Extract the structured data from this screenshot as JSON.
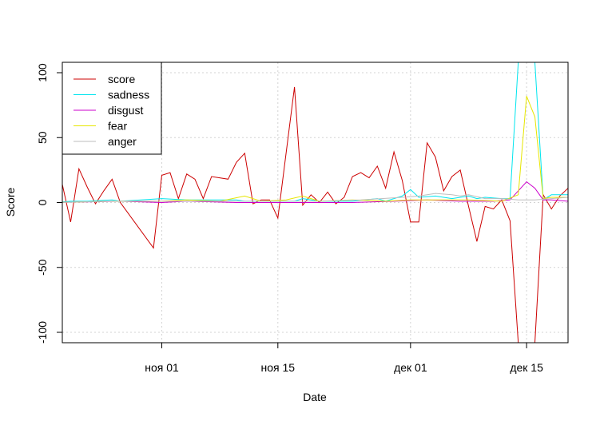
{
  "chart_data": {
    "type": "line",
    "title": "",
    "xlabel": "Date",
    "ylabel": "Score",
    "grid": true,
    "legend_position": "top-left",
    "xlim": [
      "2021-10-20",
      "2021-12-20"
    ],
    "ylim": [
      -108,
      108
    ],
    "x_ticks": [
      {
        "date": "2021-11-01",
        "label": "ноя 01"
      },
      {
        "date": "2021-11-15",
        "label": "ноя 15"
      },
      {
        "date": "2021-12-01",
        "label": "дек 01"
      },
      {
        "date": "2021-12-15",
        "label": "дек 15"
      }
    ],
    "y_ticks": [
      -100,
      -50,
      0,
      50,
      100
    ],
    "series": [
      {
        "name": "score",
        "color": "#cc0000",
        "points": [
          [
            "2021-10-19",
            7
          ],
          [
            "2021-10-20",
            14
          ],
          [
            "2021-10-21",
            -15
          ],
          [
            "2021-10-22",
            26
          ],
          [
            "2021-10-23",
            12
          ],
          [
            "2021-10-24",
            -1
          ],
          [
            "2021-10-25",
            9
          ],
          [
            "2021-10-26",
            18
          ],
          [
            "2021-10-27",
            0
          ],
          [
            "2021-10-31",
            -35
          ],
          [
            "2021-11-01",
            21
          ],
          [
            "2021-11-02",
            23
          ],
          [
            "2021-11-03",
            3
          ],
          [
            "2021-11-04",
            22
          ],
          [
            "2021-11-05",
            18
          ],
          [
            "2021-11-06",
            3
          ],
          [
            "2021-11-07",
            20
          ],
          [
            "2021-11-09",
            18
          ],
          [
            "2021-11-10",
            31
          ],
          [
            "2021-11-11",
            38
          ],
          [
            "2021-11-12",
            -1
          ],
          [
            "2021-11-13",
            2
          ],
          [
            "2021-11-14",
            2
          ],
          [
            "2021-11-15",
            -12
          ],
          [
            "2021-11-17",
            89
          ],
          [
            "2021-11-18",
            -2
          ],
          [
            "2021-11-19",
            6
          ],
          [
            "2021-11-20",
            0
          ],
          [
            "2021-11-21",
            8
          ],
          [
            "2021-11-22",
            -1
          ],
          [
            "2021-11-23",
            4
          ],
          [
            "2021-11-24",
            20
          ],
          [
            "2021-11-25",
            23
          ],
          [
            "2021-11-26",
            19
          ],
          [
            "2021-11-27",
            28
          ],
          [
            "2021-11-28",
            11
          ],
          [
            "2021-11-29",
            39
          ],
          [
            "2021-11-30",
            17
          ],
          [
            "2021-12-01",
            -15
          ],
          [
            "2021-12-02",
            -15
          ],
          [
            "2021-12-03",
            46
          ],
          [
            "2021-12-04",
            35
          ],
          [
            "2021-12-05",
            9
          ],
          [
            "2021-12-06",
            20
          ],
          [
            "2021-12-07",
            25
          ],
          [
            "2021-12-08",
            -3
          ],
          [
            "2021-12-09",
            -30
          ],
          [
            "2021-12-10",
            -3
          ],
          [
            "2021-12-11",
            -5
          ],
          [
            "2021-12-12",
            2
          ],
          [
            "2021-12-13",
            -14
          ],
          [
            "2021-12-14",
            -108
          ],
          [
            "2021-12-15",
            -108
          ],
          [
            "2021-12-16",
            -108
          ],
          [
            "2021-12-17",
            6
          ],
          [
            "2021-12-18",
            -5
          ],
          [
            "2021-12-19",
            5
          ],
          [
            "2021-12-20",
            11
          ]
        ]
      },
      {
        "name": "sadness",
        "color": "#00e5ee",
        "points": [
          [
            "2021-10-19",
            0
          ],
          [
            "2021-10-21",
            1
          ],
          [
            "2021-10-23",
            1
          ],
          [
            "2021-10-26",
            2
          ],
          [
            "2021-10-27",
            1
          ],
          [
            "2021-11-01",
            3
          ],
          [
            "2021-11-04",
            2
          ],
          [
            "2021-11-07",
            2
          ],
          [
            "2021-11-10",
            2
          ],
          [
            "2021-11-11",
            1
          ],
          [
            "2021-11-14",
            1
          ],
          [
            "2021-11-17",
            1
          ],
          [
            "2021-11-18",
            3
          ],
          [
            "2021-11-20",
            1
          ],
          [
            "2021-11-24",
            1
          ],
          [
            "2021-11-27",
            3
          ],
          [
            "2021-11-28",
            1
          ],
          [
            "2021-11-30",
            5
          ],
          [
            "2021-12-01",
            10
          ],
          [
            "2021-12-02",
            4
          ],
          [
            "2021-12-04",
            5
          ],
          [
            "2021-12-06",
            3
          ],
          [
            "2021-12-08",
            5
          ],
          [
            "2021-12-09",
            3
          ],
          [
            "2021-12-10",
            4
          ],
          [
            "2021-12-12",
            3
          ],
          [
            "2021-12-13",
            3
          ],
          [
            "2021-12-14",
            108
          ],
          [
            "2021-12-15",
            108
          ],
          [
            "2021-12-16",
            108
          ],
          [
            "2021-12-17",
            2
          ],
          [
            "2021-12-18",
            6
          ],
          [
            "2021-12-20",
            6
          ]
        ]
      },
      {
        "name": "disgust",
        "color": "#cc00cc",
        "points": [
          [
            "2021-10-19",
            0
          ],
          [
            "2021-10-27",
            1
          ],
          [
            "2021-11-01",
            0
          ],
          [
            "2021-11-04",
            1
          ],
          [
            "2021-11-10",
            0
          ],
          [
            "2021-11-17",
            0
          ],
          [
            "2021-11-24",
            0
          ],
          [
            "2021-11-29",
            1
          ],
          [
            "2021-12-03",
            2
          ],
          [
            "2021-12-07",
            1
          ],
          [
            "2021-12-11",
            1
          ],
          [
            "2021-12-13",
            2
          ],
          [
            "2021-12-15",
            16
          ],
          [
            "2021-12-16",
            11
          ],
          [
            "2021-12-17",
            2
          ],
          [
            "2021-12-18",
            2
          ],
          [
            "2021-12-20",
            1
          ]
        ]
      },
      {
        "name": "fear",
        "color": "#e6e600",
        "points": [
          [
            "2021-10-19",
            0
          ],
          [
            "2021-10-26",
            1
          ],
          [
            "2021-11-01",
            1
          ],
          [
            "2021-11-04",
            2
          ],
          [
            "2021-11-08",
            1
          ],
          [
            "2021-11-11",
            5
          ],
          [
            "2021-11-13",
            1
          ],
          [
            "2021-11-16",
            2
          ],
          [
            "2021-11-18",
            5
          ],
          [
            "2021-11-20",
            1
          ],
          [
            "2021-11-24",
            2
          ],
          [
            "2021-11-28",
            1
          ],
          [
            "2021-12-01",
            2
          ],
          [
            "2021-12-04",
            2
          ],
          [
            "2021-12-08",
            2
          ],
          [
            "2021-12-12",
            1
          ],
          [
            "2021-12-14",
            6
          ],
          [
            "2021-12-15",
            82
          ],
          [
            "2021-12-16",
            66
          ],
          [
            "2021-12-17",
            3
          ],
          [
            "2021-12-18",
            4
          ],
          [
            "2021-12-20",
            4
          ]
        ]
      },
      {
        "name": "anger",
        "color": "#bebebe",
        "points": [
          [
            "2021-10-19",
            0
          ],
          [
            "2021-10-26",
            1
          ],
          [
            "2021-11-01",
            1
          ],
          [
            "2021-11-05",
            1
          ],
          [
            "2021-11-10",
            1
          ],
          [
            "2021-11-15",
            1
          ],
          [
            "2021-11-20",
            1
          ],
          [
            "2021-11-25",
            2
          ],
          [
            "2021-11-30",
            4
          ],
          [
            "2021-12-02",
            5
          ],
          [
            "2021-12-04",
            7
          ],
          [
            "2021-12-06",
            6
          ],
          [
            "2021-12-07",
            5
          ],
          [
            "2021-12-08",
            6
          ],
          [
            "2021-12-10",
            3
          ],
          [
            "2021-12-12",
            3
          ],
          [
            "2021-12-14",
            2
          ],
          [
            "2021-12-16",
            2
          ],
          [
            "2021-12-18",
            3
          ],
          [
            "2021-12-20",
            4
          ]
        ]
      }
    ]
  }
}
